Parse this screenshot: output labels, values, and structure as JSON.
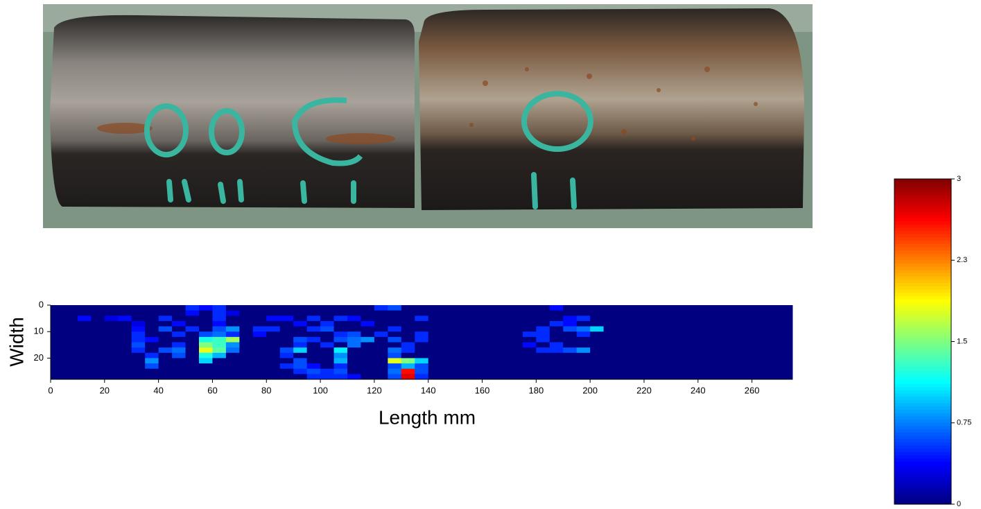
{
  "chart_data": {
    "type": "heatmap",
    "xlabel": "Length mm",
    "ylabel": "Width",
    "xlim": [
      0,
      275
    ],
    "ylim": [
      0,
      28
    ],
    "y_inverted": true,
    "xticks": [
      0,
      20,
      40,
      60,
      80,
      100,
      120,
      140,
      160,
      180,
      200,
      220,
      240,
      260
    ],
    "yticks": [
      0,
      10,
      20
    ],
    "colormap": "jet",
    "colorbar": {
      "lim": [
        0,
        3
      ],
      "ticks": [
        0,
        0.75,
        1.5,
        {
          "value": 2.25,
          "label": "2.3"
        },
        3
      ]
    },
    "xbins": [
      0,
      5,
      10,
      15,
      20,
      25,
      30,
      35,
      40,
      45,
      50,
      55,
      60,
      65,
      70,
      75,
      80,
      85,
      90,
      95,
      100,
      105,
      110,
      115,
      120,
      125,
      130,
      135,
      140,
      145,
      150,
      155,
      160,
      165,
      170,
      175,
      180,
      185,
      190,
      195,
      200,
      205,
      210,
      215,
      220,
      225,
      230,
      235,
      240,
      245,
      250,
      255,
      260,
      265,
      270,
      275
    ],
    "ybins": [
      0,
      2,
      4,
      6,
      8,
      10,
      12,
      14,
      16,
      18,
      20,
      22,
      24,
      26,
      28
    ],
    "z": [
      [
        0,
        0,
        0,
        0,
        0,
        0,
        0,
        0,
        0,
        0,
        0.5,
        0.4,
        0.5,
        0,
        0,
        0,
        0,
        0,
        0,
        0,
        0,
        0,
        0,
        0,
        0.5,
        0.6,
        0,
        0,
        0,
        0,
        0,
        0,
        0,
        0,
        0,
        0,
        0,
        0.4,
        0,
        0,
        0,
        0,
        0,
        0,
        0,
        0,
        0,
        0,
        0,
        0,
        0,
        0,
        0,
        0,
        0
      ],
      [
        0,
        0,
        0,
        0,
        0,
        0,
        0,
        0,
        0,
        0,
        0.4,
        0,
        0.5,
        0.3,
        0,
        0,
        0,
        0,
        0,
        0,
        0,
        0,
        0,
        0,
        0,
        0,
        0,
        0,
        0,
        0,
        0,
        0,
        0,
        0,
        0,
        0,
        0,
        0,
        0,
        0,
        0,
        0,
        0,
        0,
        0,
        0,
        0,
        0,
        0,
        0,
        0,
        0,
        0,
        0,
        0
      ],
      [
        0,
        0,
        0.4,
        0,
        0.3,
        0.4,
        0,
        0,
        0.5,
        0,
        0,
        0,
        0.5,
        0,
        0,
        0,
        0.4,
        0.4,
        0,
        0.5,
        0,
        0.5,
        0.4,
        0,
        0,
        0,
        0,
        0.5,
        0,
        0,
        0,
        0,
        0,
        0,
        0,
        0,
        0,
        0,
        0.4,
        0.5,
        0,
        0,
        0,
        0,
        0,
        0,
        0,
        0,
        0,
        0,
        0,
        0,
        0,
        0,
        0
      ],
      [
        0,
        0,
        0,
        0,
        0,
        0,
        0.3,
        0,
        0,
        0.4,
        0,
        0,
        0.4,
        0,
        0,
        0,
        0,
        0,
        0.4,
        0,
        0.5,
        0,
        0,
        0.4,
        0,
        0,
        0,
        0,
        0,
        0,
        0,
        0,
        0,
        0,
        0,
        0,
        0,
        0.5,
        0.4,
        0,
        0,
        0,
        0,
        0,
        0,
        0,
        0,
        0,
        0,
        0,
        0,
        0,
        0,
        0,
        0
      ],
      [
        0,
        0,
        0,
        0,
        0,
        0,
        0.4,
        0,
        0.6,
        0,
        0.5,
        0,
        0.6,
        0.8,
        0,
        0.5,
        0.5,
        0,
        0,
        0.5,
        0.6,
        0,
        0,
        0,
        0,
        0.5,
        0,
        0,
        0,
        0,
        0,
        0,
        0,
        0,
        0,
        0,
        0.5,
        0,
        0.6,
        0.7,
        1.0,
        0,
        0,
        0,
        0,
        0,
        0,
        0,
        0,
        0,
        0,
        0,
        0,
        0,
        0
      ],
      [
        0,
        0,
        0,
        0,
        0,
        0,
        0.5,
        0,
        0,
        0.5,
        0,
        0.6,
        0.7,
        0.5,
        0,
        0.4,
        0,
        0,
        0,
        0,
        0,
        0.5,
        0.6,
        0,
        0.5,
        0,
        0,
        0.5,
        0,
        0,
        0,
        0,
        0,
        0,
        0,
        0.5,
        0.5,
        0,
        0,
        0.5,
        0,
        0,
        0,
        0,
        0,
        0,
        0,
        0,
        0,
        0,
        0,
        0,
        0,
        0,
        0
      ],
      [
        0,
        0,
        0,
        0,
        0,
        0,
        0.5,
        0.4,
        0,
        0,
        0,
        1.2,
        1.3,
        1.6,
        0,
        0,
        0,
        0,
        0.6,
        0.5,
        0,
        0.6,
        0.7,
        0.8,
        0,
        0.6,
        0,
        0.5,
        0,
        0,
        0,
        0,
        0,
        0,
        0,
        0,
        0.5,
        0,
        0,
        0,
        0,
        0,
        0,
        0,
        0,
        0,
        0,
        0,
        0,
        0,
        0,
        0,
        0,
        0,
        0
      ],
      [
        0,
        0,
        0,
        0,
        0,
        0,
        0.6,
        0,
        0,
        0.5,
        0,
        1.5,
        1.3,
        0.8,
        0,
        0,
        0,
        0,
        0.5,
        0,
        0.5,
        0,
        0.7,
        0,
        0,
        0,
        0.5,
        0,
        0,
        0,
        0,
        0,
        0,
        0,
        0,
        0.4,
        0,
        0.5,
        0,
        0,
        0,
        0,
        0,
        0,
        0,
        0,
        0,
        0,
        0,
        0,
        0,
        0,
        0,
        0,
        0
      ],
      [
        0,
        0,
        0,
        0,
        0,
        0,
        0.5,
        0,
        0.6,
        0.7,
        0,
        1.8,
        1.4,
        0.7,
        0,
        0,
        0,
        0.6,
        1.0,
        0,
        0,
        1.1,
        0,
        0,
        0,
        0.7,
        0.5,
        0,
        0,
        0,
        0,
        0,
        0,
        0,
        0,
        0,
        0.5,
        0.5,
        0.6,
        0.8,
        0,
        0,
        0,
        0,
        0,
        0,
        0,
        0,
        0,
        0,
        0,
        0,
        0,
        0,
        0
      ],
      [
        0,
        0,
        0,
        0,
        0,
        0,
        0,
        0.5,
        0,
        0.6,
        0,
        1.2,
        0.9,
        0,
        0,
        0,
        0,
        0.5,
        0,
        0,
        0,
        0.8,
        0,
        0,
        0,
        0.6,
        0,
        0,
        0,
        0,
        0,
        0,
        0,
        0,
        0,
        0,
        0,
        0,
        0,
        0,
        0,
        0,
        0,
        0,
        0,
        0,
        0,
        0,
        0,
        0,
        0,
        0,
        0,
        0,
        0
      ],
      [
        0,
        0,
        0,
        0,
        0,
        0,
        0,
        0.8,
        0,
        0,
        0,
        1.0,
        0,
        0,
        0,
        0,
        0,
        0,
        0.6,
        0,
        0,
        0.9,
        0,
        0,
        0,
        1.8,
        1.5,
        1.0,
        0,
        0,
        0,
        0,
        0,
        0,
        0,
        0,
        0,
        0,
        0,
        0,
        0,
        0,
        0,
        0,
        0,
        0,
        0,
        0,
        0,
        0,
        0,
        0,
        0,
        0,
        0
      ],
      [
        0,
        0,
        0,
        0,
        0,
        0,
        0,
        0.6,
        0,
        0,
        0,
        0,
        0,
        0,
        0,
        0,
        0,
        0.5,
        0.6,
        0.4,
        0,
        0.5,
        0,
        0,
        0,
        0.6,
        0.9,
        0.6,
        0,
        0,
        0,
        0,
        0,
        0,
        0,
        0,
        0,
        0,
        0,
        0,
        0,
        0,
        0,
        0,
        0,
        0,
        0,
        0,
        0,
        0,
        0,
        0,
        0,
        0,
        0
      ],
      [
        0,
        0,
        0,
        0,
        0,
        0,
        0,
        0,
        0,
        0,
        0,
        0,
        0,
        0,
        0,
        0,
        0,
        0,
        0.5,
        0.6,
        0.5,
        0.6,
        0,
        0,
        0,
        0.7,
        2.6,
        0.6,
        0,
        0,
        0,
        0,
        0,
        0,
        0,
        0,
        0,
        0,
        0,
        0,
        0,
        0,
        0,
        0,
        0,
        0,
        0,
        0,
        0,
        0,
        0,
        0,
        0,
        0,
        0
      ],
      [
        0,
        0,
        0,
        0,
        0,
        0,
        0,
        0,
        0,
        0,
        0,
        0,
        0,
        0,
        0,
        0,
        0,
        0,
        0,
        0.5,
        0.5,
        0.5,
        0.4,
        0,
        0,
        0.6,
        2.7,
        0.5,
        0,
        0,
        0,
        0,
        0,
        0,
        0,
        0,
        0,
        0,
        0,
        0,
        0,
        0,
        0,
        0,
        0,
        0,
        0,
        0,
        0,
        0,
        0,
        0,
        0,
        0,
        0
      ]
    ]
  }
}
